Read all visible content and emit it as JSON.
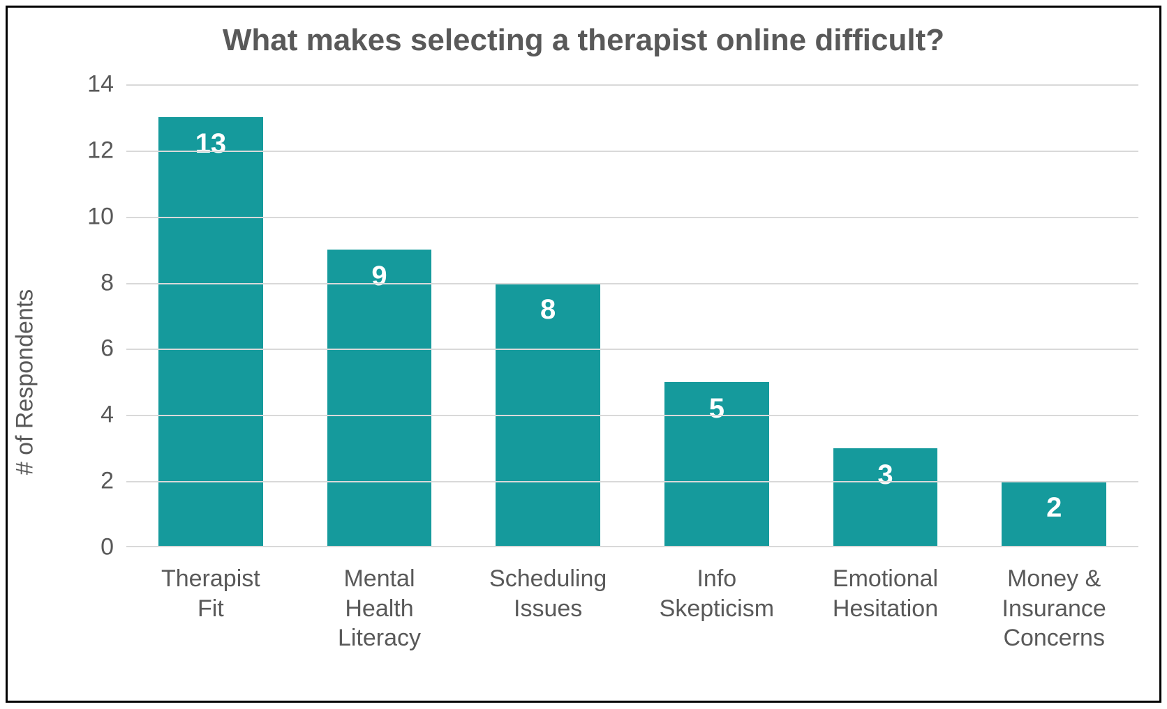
{
  "chart": {
    "type": "bar",
    "title": "What makes selecting a therapist online difficult?",
    "title_fontsize": 44,
    "title_color": "#595959",
    "ylabel": "# of Respondents",
    "ylabel_fontsize": 34,
    "ylabel_color": "#595959",
    "tick_fontsize": 34,
    "tick_color": "#595959",
    "data_label_fontsize": 40,
    "data_label_color": "#ffffff",
    "background_color": "#ffffff",
    "grid_color": "#d9d9d9",
    "bar_color": "#159a9c",
    "bar_width_ratio": 0.62,
    "ylim": [
      0,
      14
    ],
    "ytick_step": 2,
    "yticks": [
      0,
      2,
      4,
      6,
      8,
      10,
      12,
      14
    ],
    "categories": [
      "Therapist\nFit",
      "Mental\nHealth\nLiteracy",
      "Scheduling\nIssues",
      "Info\nSkepticism",
      "Emotional\nHesitation",
      "Money &\nInsurance\nConcerns"
    ],
    "values": [
      13,
      9,
      8,
      5,
      3,
      2
    ],
    "frame_border_color": "#000000",
    "frame_border_width": 3
  }
}
